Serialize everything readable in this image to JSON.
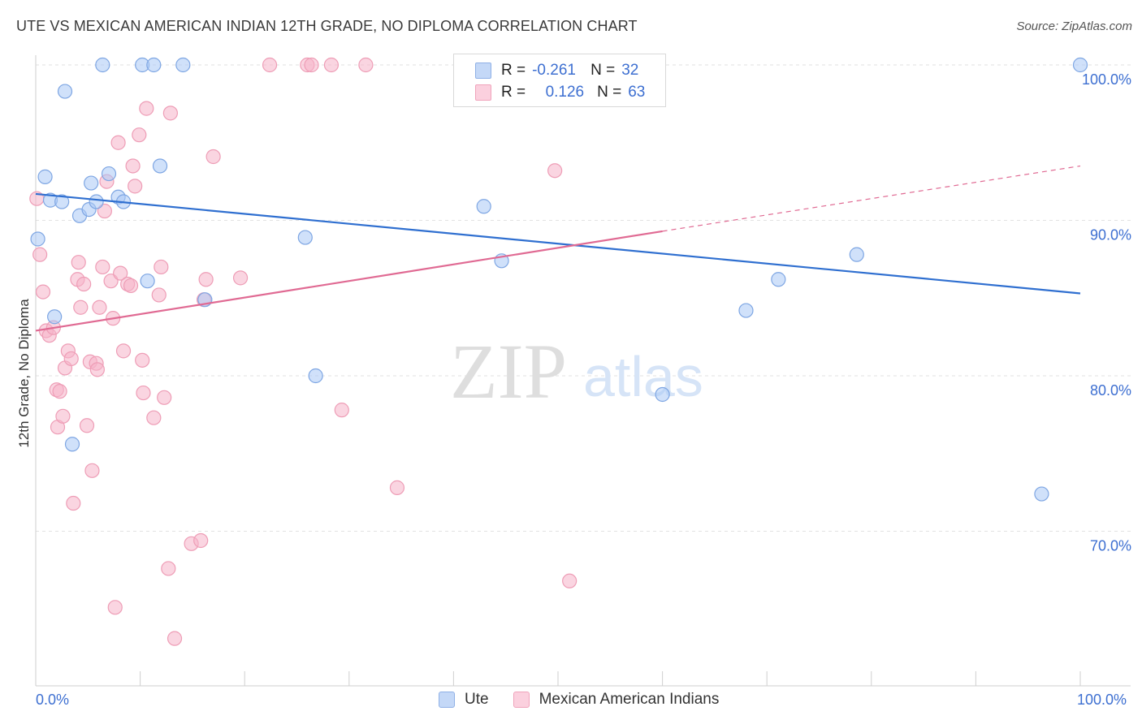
{
  "header": {
    "title": "UTE VS MEXICAN AMERICAN INDIAN 12TH GRADE, NO DIPLOMA CORRELATION CHART",
    "source": "Source: ZipAtlas.com"
  },
  "watermark": {
    "zip": "ZIP",
    "atlas": "atlas"
  },
  "legend": {
    "rows": [
      {
        "r_label": "R =",
        "r_value": "-0.261",
        "n_label": "N =",
        "n_value": "32",
        "color": "#a9c8f5"
      },
      {
        "r_label": "R =",
        "r_value": "0.126",
        "n_label": "N =",
        "n_value": "63",
        "color": "#f6b3c8"
      }
    ]
  },
  "bottom_legend": {
    "series1": "Ute",
    "series2": "Mexican American Indians"
  },
  "chart_data": {
    "type": "scatter",
    "title": "UTE VS MEXICAN AMERICAN INDIAN 12TH GRADE, NO DIPLOMA CORRELATION CHART",
    "ylabel": "12th Grade, No Diploma",
    "xlabel": "",
    "x_tick_labels": [
      "0.0%",
      "100.0%"
    ],
    "y_tick_labels": [
      "100.0%",
      "90.0%",
      "80.0%",
      "70.0%"
    ],
    "y_ticks": [
      100,
      90,
      80,
      70
    ],
    "xlim": [
      0,
      100
    ],
    "ylim": [
      60,
      104
    ],
    "grid": true,
    "legend_position": "top-center",
    "colors": {
      "ute": "#a9c8f5",
      "ute_line": "#2f6fd0",
      "mai": "#f6b3c8",
      "mai_line": "#e06a93"
    },
    "series": [
      {
        "name": "Ute",
        "points": [
          [
            0.2,
            88.8
          ],
          [
            0.9,
            92.8
          ],
          [
            1.4,
            91.3
          ],
          [
            1.8,
            83.8
          ],
          [
            2.5,
            91.2
          ],
          [
            2.8,
            98.3
          ],
          [
            3.5,
            75.6
          ],
          [
            4.2,
            90.3
          ],
          [
            5.1,
            90.7
          ],
          [
            5.3,
            92.4
          ],
          [
            5.8,
            91.2
          ],
          [
            6.4,
            100
          ],
          [
            7.0,
            93.0
          ],
          [
            7.9,
            91.5
          ],
          [
            8.4,
            91.2
          ],
          [
            10.2,
            100
          ],
          [
            10.7,
            86.1
          ],
          [
            11.3,
            100
          ],
          [
            11.9,
            93.5
          ],
          [
            14.1,
            100
          ],
          [
            16.2,
            84.9
          ],
          [
            25.8,
            88.9
          ],
          [
            26.8,
            80.0
          ],
          [
            42.9,
            90.9
          ],
          [
            44.6,
            87.4
          ],
          [
            54.4,
            100
          ],
          [
            60.0,
            78.8
          ],
          [
            68.0,
            84.2
          ],
          [
            71.1,
            86.2
          ],
          [
            78.6,
            87.8
          ],
          [
            96.3,
            72.4
          ],
          [
            100,
            100
          ]
        ],
        "trend": {
          "x": [
            0,
            100
          ],
          "y": [
            91.7,
            85.3
          ]
        }
      },
      {
        "name": "Mexican American Indians",
        "points": [
          [
            0.1,
            91.4
          ],
          [
            0.4,
            87.8
          ],
          [
            0.7,
            85.4
          ],
          [
            1.0,
            82.9
          ],
          [
            1.3,
            82.6
          ],
          [
            1.7,
            83.1
          ],
          [
            2.0,
            79.1
          ],
          [
            2.1,
            76.7
          ],
          [
            2.3,
            79.0
          ],
          [
            2.6,
            77.4
          ],
          [
            2.8,
            80.5
          ],
          [
            3.1,
            81.6
          ],
          [
            3.4,
            81.1
          ],
          [
            3.6,
            71.8
          ],
          [
            4.0,
            86.2
          ],
          [
            4.1,
            87.3
          ],
          [
            4.3,
            84.4
          ],
          [
            4.6,
            85.9
          ],
          [
            4.9,
            76.8
          ],
          [
            5.2,
            80.9
          ],
          [
            5.4,
            73.9
          ],
          [
            5.8,
            80.8
          ],
          [
            5.9,
            80.4
          ],
          [
            6.1,
            84.4
          ],
          [
            6.4,
            87.0
          ],
          [
            6.6,
            90.6
          ],
          [
            6.8,
            92.5
          ],
          [
            7.2,
            86.1
          ],
          [
            7.4,
            83.7
          ],
          [
            7.6,
            65.1
          ],
          [
            7.9,
            95.0
          ],
          [
            8.1,
            86.6
          ],
          [
            8.4,
            81.6
          ],
          [
            8.8,
            85.9
          ],
          [
            9.1,
            85.8
          ],
          [
            9.3,
            93.5
          ],
          [
            9.5,
            92.2
          ],
          [
            9.9,
            95.5
          ],
          [
            10.2,
            81.0
          ],
          [
            10.3,
            78.9
          ],
          [
            10.6,
            97.2
          ],
          [
            11.3,
            77.3
          ],
          [
            11.8,
            85.2
          ],
          [
            12.0,
            87.0
          ],
          [
            12.3,
            78.6
          ],
          [
            12.7,
            67.6
          ],
          [
            12.9,
            96.9
          ],
          [
            13.3,
            63.1
          ],
          [
            14.9,
            69.2
          ],
          [
            15.8,
            69.4
          ],
          [
            16.3,
            86.2
          ],
          [
            17.0,
            94.1
          ],
          [
            19.6,
            86.3
          ],
          [
            22.4,
            100
          ],
          [
            26.0,
            100
          ],
          [
            26.4,
            100
          ],
          [
            28.3,
            100
          ],
          [
            29.3,
            77.8
          ],
          [
            31.6,
            100
          ],
          [
            34.6,
            72.8
          ],
          [
            49.7,
            93.2
          ],
          [
            51.1,
            66.8
          ],
          [
            16.1,
            84.9
          ]
        ],
        "trend": {
          "x": [
            0,
            60
          ],
          "y": [
            82.9,
            89.3
          ],
          "dashed_to": {
            "x": 100,
            "y": 93.5
          }
        }
      }
    ]
  }
}
